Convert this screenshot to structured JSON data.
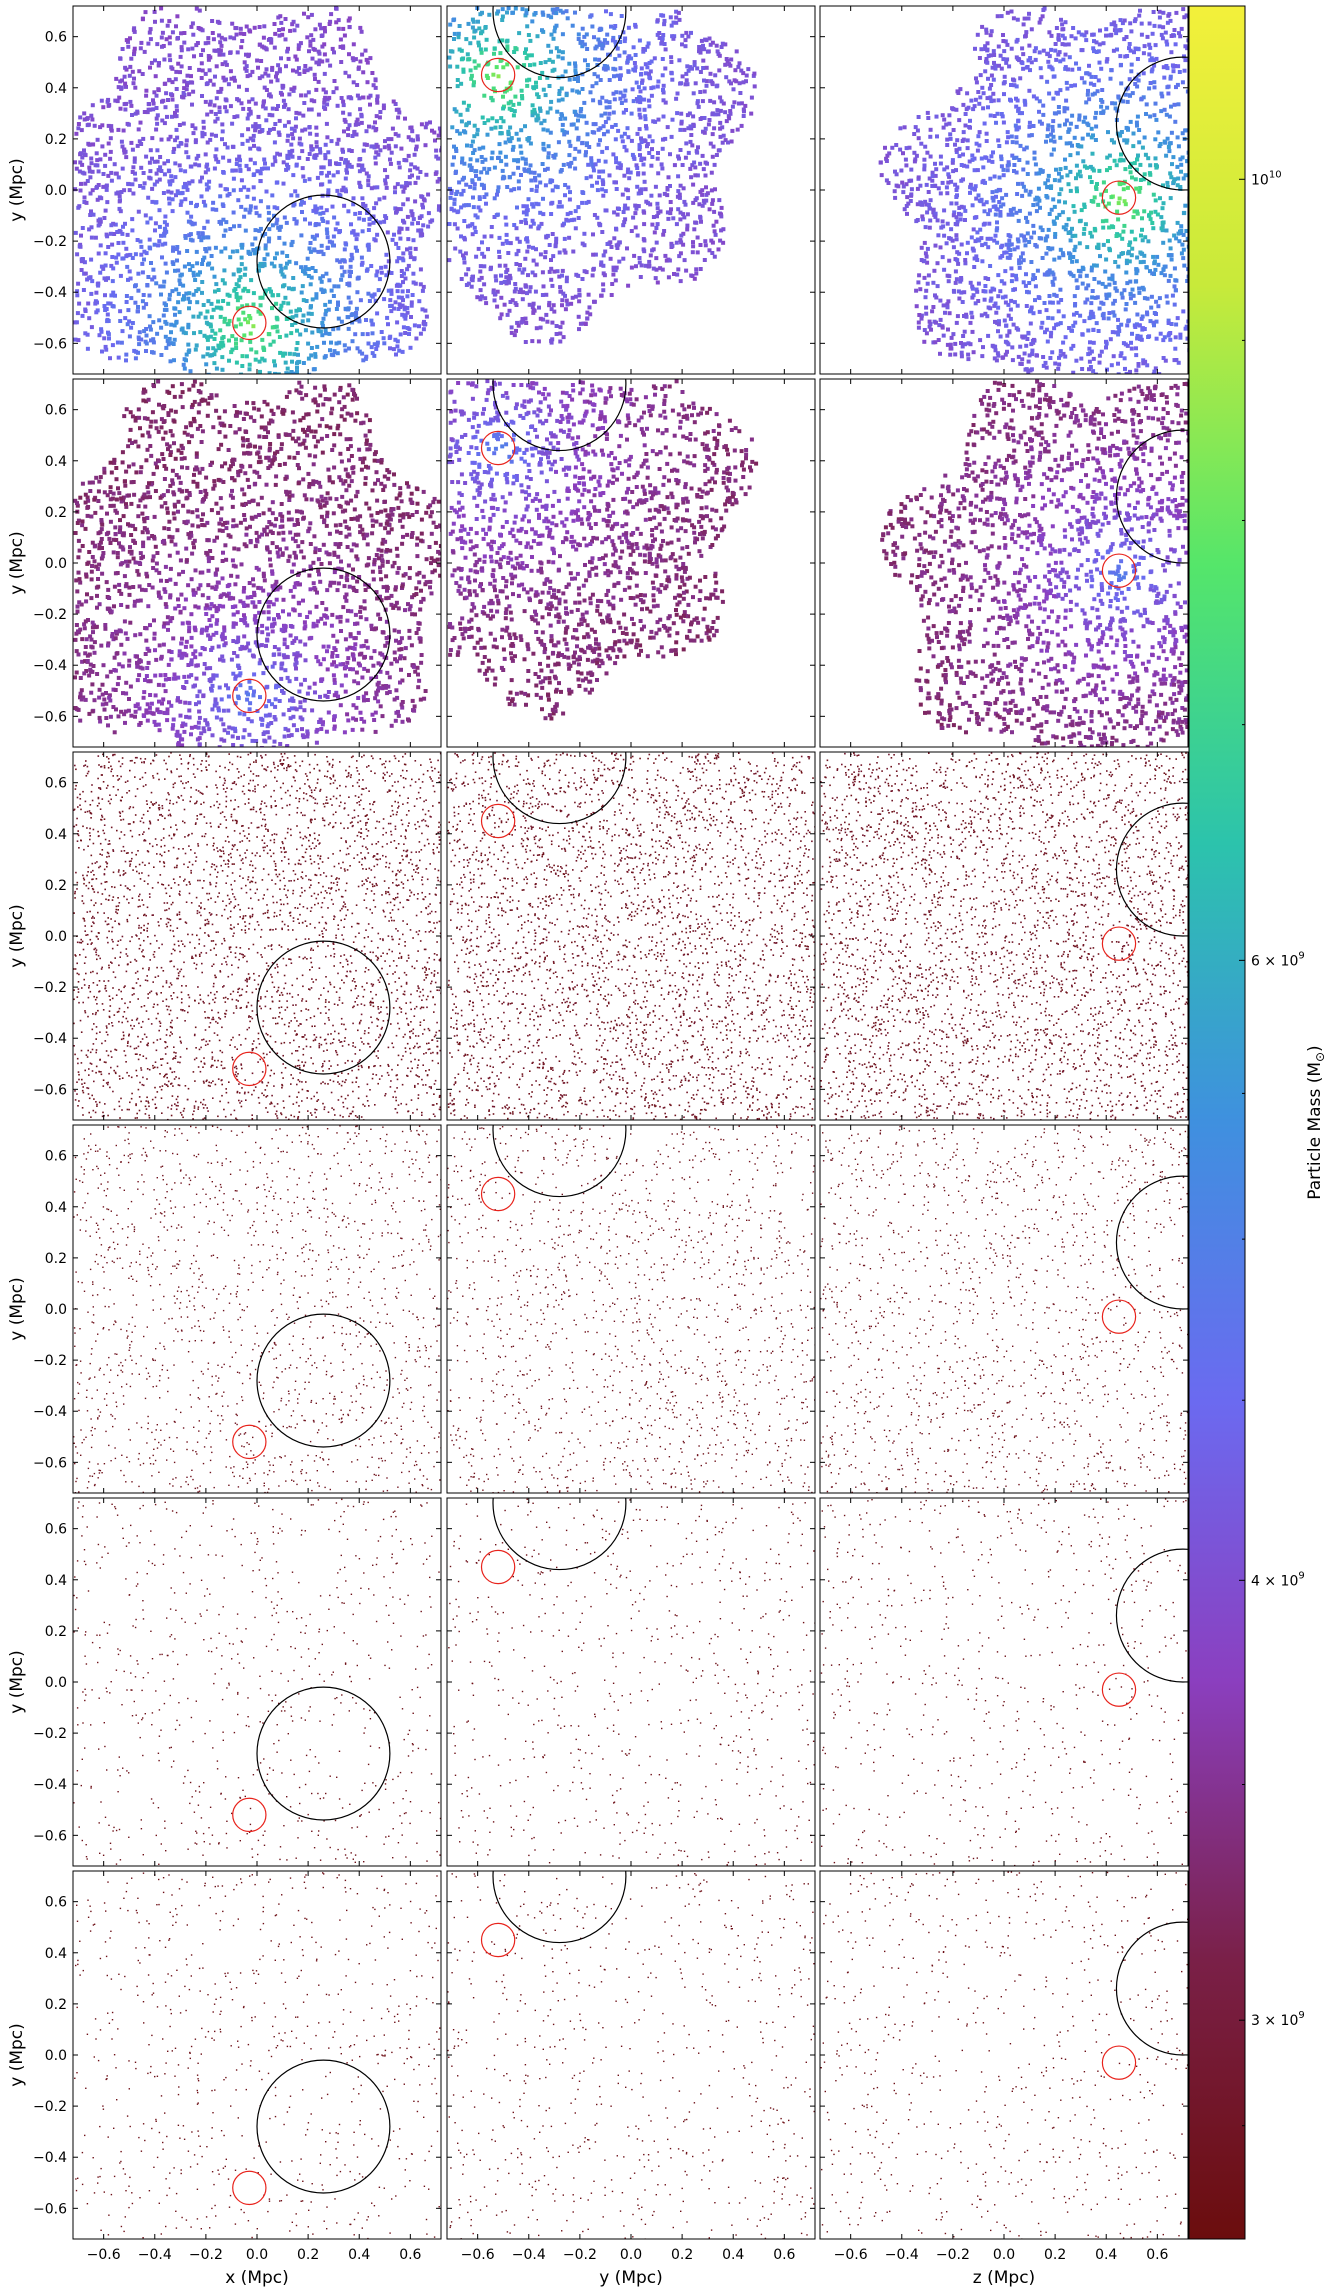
{
  "chart_data": {
    "type": "scatter",
    "grid": {
      "rows": 6,
      "cols": 3
    },
    "xlim": [
      -0.72,
      0.72
    ],
    "ylim": [
      -0.72,
      0.72
    ],
    "x_ticks": [
      -0.6,
      -0.4,
      -0.2,
      0.0,
      0.2,
      0.4,
      0.6
    ],
    "x_tick_labels": [
      "−0.6",
      "−0.4",
      "−0.2",
      "0.0",
      "0.2",
      "0.4",
      "0.6"
    ],
    "y_ticks": [
      -0.6,
      -0.4,
      -0.2,
      0.0,
      0.2,
      0.4,
      0.6
    ],
    "y_tick_labels": [
      "−0.6",
      "−0.4",
      "−0.2",
      "0.0",
      "0.2",
      "0.4",
      "0.6"
    ],
    "xlabels": [
      "x  (Mpc)",
      "y  (Mpc)",
      "z  (Mpc)"
    ],
    "ylabel": "y  (Mpc)",
    "colorbar": {
      "label": "Particle Mass  (M",
      "label_sub": "⊙",
      "label_close": ")",
      "log_scale": true,
      "range": [
        2600000000.0,
        11200000000.0
      ],
      "ticks": [
        {
          "value": 10000000000.0,
          "base": "10",
          "exp": "10"
        },
        {
          "value": 6000000000.0,
          "base": "6 × 10",
          "exp": "9"
        },
        {
          "value": 4000000000.0,
          "base": "4 × 10",
          "exp": "9"
        },
        {
          "value": 3000000000.0,
          "base": "3 × 10",
          "exp": "9"
        }
      ],
      "colors": [
        "#6b0d0d",
        "#7a2048",
        "#8b3fbf",
        "#6b6af0",
        "#3f90df",
        "#2cc3ac",
        "#55e66a",
        "#c8ea3a",
        "#f3f03a"
      ]
    },
    "columns": [
      {
        "axis": "x",
        "black_circle": {
          "cx": 0.26,
          "cy": -0.28,
          "r": 0.26
        },
        "red_circle": {
          "cx": -0.03,
          "cy": -0.52,
          "r": 0.065
        }
      },
      {
        "axis": "y",
        "black_circle": {
          "cx": -0.28,
          "cy": 0.7,
          "r": 0.26
        },
        "red_circle": {
          "cx": -0.52,
          "cy": 0.45,
          "r": 0.065
        }
      },
      {
        "axis": "z",
        "black_circle": {
          "cx": 0.7,
          "cy": 0.26,
          "r": 0.26
        },
        "red_circle": {
          "cx": 0.45,
          "cy": -0.03,
          "r": 0.065
        }
      }
    ],
    "rows": [
      {
        "density": "filled",
        "peak_mass": 11000000000.0
      },
      {
        "density": "filled",
        "peak_mass": 5500000000.0
      },
      {
        "density": "dense",
        "peak_mass": 4000000000.0
      },
      {
        "density": "medium",
        "peak_mass": 3200000000.0
      },
      {
        "density": "sparse",
        "peak_mass": 2800000000.0
      },
      {
        "density": "sparse",
        "peak_mass": 2700000000.0
      }
    ],
    "circle_colors": {
      "black": "#000000",
      "red": "#e8231c"
    }
  }
}
